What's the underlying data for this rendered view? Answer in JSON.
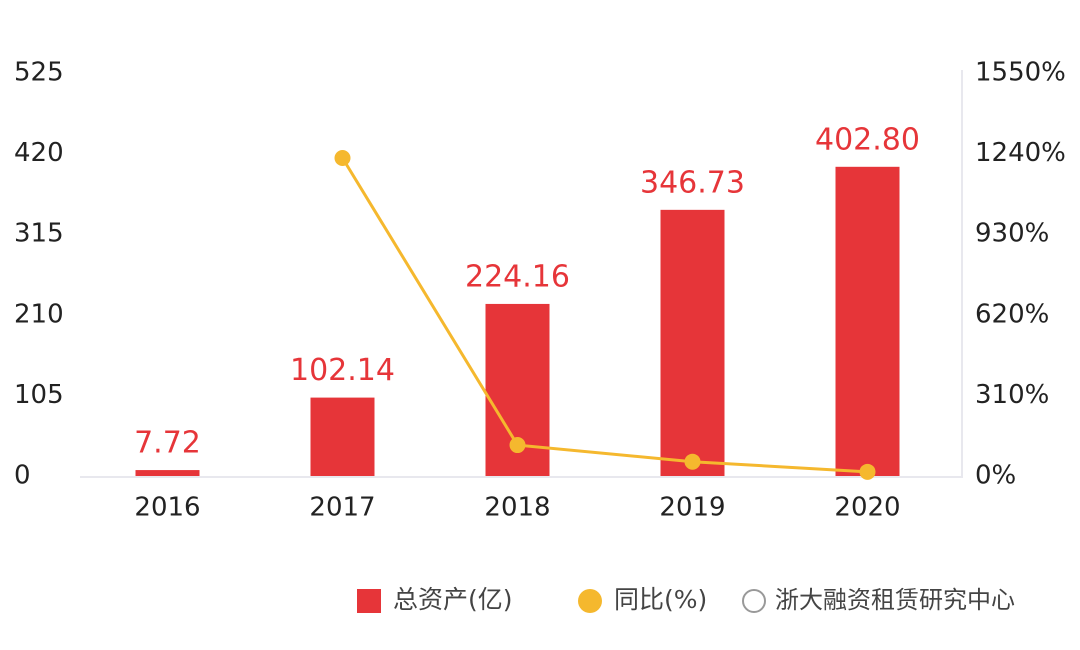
{
  "chart_data": {
    "type": "bar-line",
    "categories": [
      "2016",
      "2017",
      "2018",
      "2019",
      "2020"
    ],
    "series": [
      {
        "name": "总资产(亿)",
        "type": "bar",
        "color": "#e63539",
        "values": [
          7.72,
          102.14,
          224.16,
          346.73,
          402.8
        ],
        "value_labels": [
          "7.72",
          "102.14",
          "224.16",
          "346.73",
          "402.80"
        ]
      },
      {
        "name": "同比(%)",
        "type": "line",
        "axis": "y2",
        "color": "#f5b82e",
        "values": [
          null,
          1223,
          119,
          55,
          16
        ]
      }
    ],
    "ylim": [
      0,
      525
    ],
    "yticks": [
      0,
      105,
      210,
      315,
      420,
      525
    ],
    "y2lim": [
      0,
      1550
    ],
    "y2ticks": [
      {
        "value": 0,
        "label": "0%"
      },
      {
        "value": 310,
        "label": "310%"
      },
      {
        "value": 620,
        "label": "620%"
      },
      {
        "value": 930,
        "label": "930%"
      },
      {
        "value": 1240,
        "label": "1240%"
      },
      {
        "value": 1550,
        "label": "1550%"
      }
    ],
    "watermark": "浙大融资租赁研究中心"
  }
}
